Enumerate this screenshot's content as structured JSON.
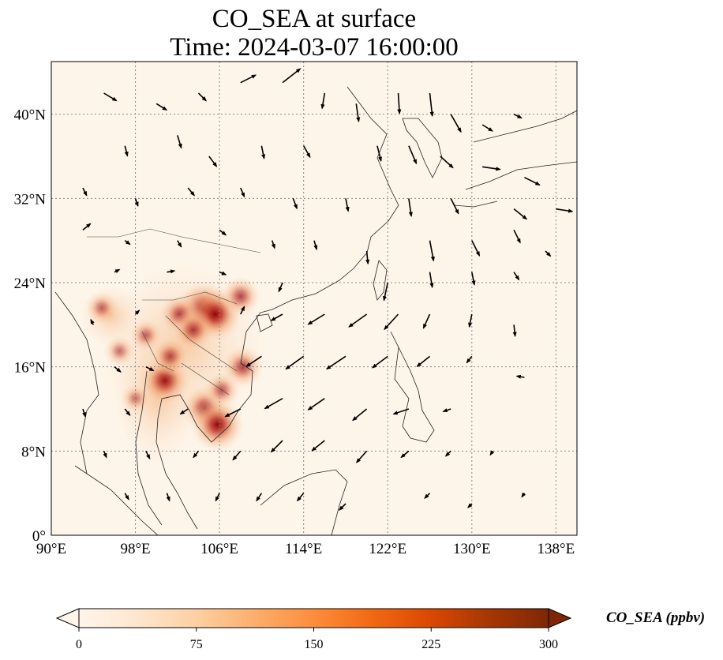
{
  "title": {
    "line1": "CO_SEA at surface",
    "line2": "Time: 2024-03-07 16:00:00"
  },
  "map": {
    "lon_range": [
      90,
      140
    ],
    "lat_range": [
      0,
      45
    ],
    "lon_ticks": [
      "90°E",
      "98°E",
      "106°E",
      "114°E",
      "122°E",
      "130°E",
      "138°E"
    ],
    "lat_ticks": [
      "0°",
      "8°N",
      "16°N",
      "24°N",
      "32°N",
      "40°N"
    ],
    "gridlines": true
  },
  "hotspots": [
    {
      "lon": 104.5,
      "lat": 21.5,
      "intensity": 1.0
    },
    {
      "lon": 105.6,
      "lat": 21.0,
      "intensity": 0.95
    },
    {
      "lon": 102.2,
      "lat": 21.0,
      "intensity": 0.55
    },
    {
      "lon": 103.5,
      "lat": 19.5,
      "intensity": 0.6
    },
    {
      "lon": 100.8,
      "lat": 14.7,
      "intensity": 0.85
    },
    {
      "lon": 104.6,
      "lat": 12.1,
      "intensity": 0.7
    },
    {
      "lon": 105.8,
      "lat": 10.5,
      "intensity": 0.95
    },
    {
      "lon": 108.2,
      "lat": 16.0,
      "intensity": 0.6
    },
    {
      "lon": 106.2,
      "lat": 13.8,
      "intensity": 0.45
    },
    {
      "lon": 99.0,
      "lat": 19.0,
      "intensity": 0.35
    },
    {
      "lon": 94.8,
      "lat": 21.6,
      "intensity": 0.35
    },
    {
      "lon": 96.5,
      "lat": 17.5,
      "intensity": 0.3
    },
    {
      "lon": 98.0,
      "lat": 13.0,
      "intensity": 0.25
    },
    {
      "lon": 108.0,
      "lat": 22.7,
      "intensity": 0.55
    },
    {
      "lon": 101.3,
      "lat": 17.0,
      "intensity": 0.5
    }
  ],
  "wind_vectors": [
    {
      "lon": 95,
      "lat": 42,
      "u": 1,
      "v": -0.6
    },
    {
      "lon": 100,
      "lat": 41,
      "u": 0.8,
      "v": -0.5
    },
    {
      "lon": 104,
      "lat": 42,
      "u": 0.6,
      "v": -0.6
    },
    {
      "lon": 108,
      "lat": 43,
      "u": 1.2,
      "v": 0.6
    },
    {
      "lon": 112,
      "lat": 43,
      "u": 1.4,
      "v": 1.1
    },
    {
      "lon": 116,
      "lat": 42,
      "u": -0.2,
      "v": -1.2
    },
    {
      "lon": 119,
      "lat": 41,
      "u": 0.2,
      "v": -1.4
    },
    {
      "lon": 123,
      "lat": 42,
      "u": 0.1,
      "v": -1.6
    },
    {
      "lon": 126,
      "lat": 42,
      "u": 0.2,
      "v": -1.8
    },
    {
      "lon": 128,
      "lat": 40,
      "u": 0.8,
      "v": -1.4
    },
    {
      "lon": 131,
      "lat": 39,
      "u": 0.8,
      "v": -0.5
    },
    {
      "lon": 134,
      "lat": 40,
      "u": 0.6,
      "v": -0.3
    },
    {
      "lon": 97,
      "lat": 37,
      "u": 0.2,
      "v": -0.8
    },
    {
      "lon": 102,
      "lat": 38,
      "u": 0.3,
      "v": -1.0
    },
    {
      "lon": 105,
      "lat": 36,
      "u": 0.6,
      "v": -0.8
    },
    {
      "lon": 110,
      "lat": 37,
      "u": 0.2,
      "v": -1.0
    },
    {
      "lon": 114,
      "lat": 37,
      "u": 0.5,
      "v": -0.9
    },
    {
      "lon": 121,
      "lat": 37,
      "u": 0.3,
      "v": -1.2
    },
    {
      "lon": 124,
      "lat": 37,
      "u": 0.6,
      "v": -1.4
    },
    {
      "lon": 127,
      "lat": 36,
      "u": 1.0,
      "v": -0.9
    },
    {
      "lon": 131,
      "lat": 35,
      "u": 1.4,
      "v": -0.2
    },
    {
      "lon": 135,
      "lat": 34,
      "u": 1.2,
      "v": -0.6
    },
    {
      "lon": 93,
      "lat": 33,
      "u": 0.3,
      "v": -0.6
    },
    {
      "lon": 98,
      "lat": 32,
      "u": 0.2,
      "v": -0.6
    },
    {
      "lon": 103,
      "lat": 33,
      "u": 0.5,
      "v": -0.6
    },
    {
      "lon": 108,
      "lat": 33,
      "u": 0.3,
      "v": -0.7
    },
    {
      "lon": 113,
      "lat": 32,
      "u": 0.3,
      "v": -0.8
    },
    {
      "lon": 118,
      "lat": 32,
      "u": 0.2,
      "v": -1.0
    },
    {
      "lon": 124,
      "lat": 32,
      "u": 0.2,
      "v": -1.4
    },
    {
      "lon": 128,
      "lat": 32,
      "u": 0.6,
      "v": -1.2
    },
    {
      "lon": 134,
      "lat": 31,
      "u": 1.0,
      "v": -0.8
    },
    {
      "lon": 138,
      "lat": 31,
      "u": 1.3,
      "v": -0.2
    },
    {
      "lon": 93,
      "lat": 29,
      "u": 0.6,
      "v": 0.5
    },
    {
      "lon": 97,
      "lat": 28,
      "u": 0.4,
      "v": -0.3
    },
    {
      "lon": 102,
      "lat": 28,
      "u": 0.3,
      "v": -0.5
    },
    {
      "lon": 106,
      "lat": 29,
      "u": 0.5,
      "v": -0.4
    },
    {
      "lon": 111,
      "lat": 28,
      "u": 0.2,
      "v": -0.6
    },
    {
      "lon": 115,
      "lat": 28,
      "u": 0.2,
      "v": -0.7
    },
    {
      "lon": 120,
      "lat": 27,
      "u": 0.1,
      "v": -1.0
    },
    {
      "lon": 126,
      "lat": 28,
      "u": 0.3,
      "v": -1.6
    },
    {
      "lon": 130,
      "lat": 28,
      "u": 0.6,
      "v": -1.2
    },
    {
      "lon": 134,
      "lat": 29,
      "u": 0.5,
      "v": -1.0
    },
    {
      "lon": 137,
      "lat": 27,
      "u": 0.4,
      "v": -0.4
    },
    {
      "lon": 96,
      "lat": 25,
      "u": 0.4,
      "v": 0.2
    },
    {
      "lon": 101,
      "lat": 25,
      "u": 0.6,
      "v": 0.1
    },
    {
      "lon": 106,
      "lat": 25,
      "u": 0.5,
      "v": -0.2
    },
    {
      "lon": 112,
      "lat": 24,
      "u": -0.3,
      "v": -0.7
    },
    {
      "lon": 122,
      "lat": 24,
      "u": -0.3,
      "v": -1.4
    },
    {
      "lon": 126,
      "lat": 25,
      "u": 0.2,
      "v": -1.2
    },
    {
      "lon": 130,
      "lat": 25,
      "u": 0.2,
      "v": -1.0
    },
    {
      "lon": 134,
      "lat": 25,
      "u": 0.4,
      "v": -0.6
    },
    {
      "lon": 94,
      "lat": 20,
      "u": -0.2,
      "v": 0.4
    },
    {
      "lon": 98,
      "lat": 21,
      "u": 0.3,
      "v": 0.3
    },
    {
      "lon": 108,
      "lat": 21,
      "u": 0.3,
      "v": 0.6
    },
    {
      "lon": 112,
      "lat": 21,
      "u": -0.9,
      "v": -0.5
    },
    {
      "lon": 116,
      "lat": 21,
      "u": -1.3,
      "v": -0.8
    },
    {
      "lon": 120,
      "lat": 21,
      "u": -1.4,
      "v": -1.0
    },
    {
      "lon": 123,
      "lat": 21,
      "u": -1.1,
      "v": -1.2
    },
    {
      "lon": 126,
      "lat": 21,
      "u": -0.5,
      "v": -1.1
    },
    {
      "lon": 130,
      "lat": 21,
      "u": -0.2,
      "v": -1.0
    },
    {
      "lon": 134,
      "lat": 20,
      "u": 0.1,
      "v": -0.9
    },
    {
      "lon": 96,
      "lat": 16,
      "u": 0.5,
      "v": -0.4
    },
    {
      "lon": 99,
      "lat": 16,
      "u": 0.6,
      "v": -0.3
    },
    {
      "lon": 110,
      "lat": 17,
      "u": -1.2,
      "v": -0.8
    },
    {
      "lon": 114,
      "lat": 17,
      "u": -1.4,
      "v": -1.0
    },
    {
      "lon": 118,
      "lat": 17,
      "u": -1.5,
      "v": -1.0
    },
    {
      "lon": 122,
      "lat": 17,
      "u": -1.2,
      "v": -0.9
    },
    {
      "lon": 126,
      "lat": 17,
      "u": -1.0,
      "v": -0.8
    },
    {
      "lon": 130,
      "lat": 17,
      "u": -0.4,
      "v": -0.5
    },
    {
      "lon": 135,
      "lat": 15,
      "u": -0.6,
      "v": 0.1
    },
    {
      "lon": 93,
      "lat": 12,
      "u": 0.2,
      "v": -0.6
    },
    {
      "lon": 97,
      "lat": 12,
      "u": 0.4,
      "v": -0.5
    },
    {
      "lon": 103,
      "lat": 12,
      "u": -0.6,
      "v": -0.4
    },
    {
      "lon": 108,
      "lat": 12,
      "u": -1.2,
      "v": -0.6
    },
    {
      "lon": 112,
      "lat": 13,
      "u": -1.4,
      "v": -0.8
    },
    {
      "lon": 116,
      "lat": 13,
      "u": -1.3,
      "v": -0.9
    },
    {
      "lon": 120,
      "lat": 12,
      "u": -1.1,
      "v": -0.9
    },
    {
      "lon": 124,
      "lat": 12,
      "u": -1.2,
      "v": -0.4
    },
    {
      "lon": 128,
      "lat": 12,
      "u": -0.6,
      "v": -0.2
    },
    {
      "lon": 95,
      "lat": 8,
      "u": 0.2,
      "v": -0.5
    },
    {
      "lon": 99,
      "lat": 8,
      "u": 0.3,
      "v": -0.6
    },
    {
      "lon": 104,
      "lat": 8,
      "u": -0.4,
      "v": -0.5
    },
    {
      "lon": 108,
      "lat": 8,
      "u": -0.6,
      "v": -0.7
    },
    {
      "lon": 112,
      "lat": 9,
      "u": -0.9,
      "v": -0.9
    },
    {
      "lon": 116,
      "lat": 9,
      "u": -1.0,
      "v": -0.8
    },
    {
      "lon": 120,
      "lat": 8,
      "u": -0.8,
      "v": -0.9
    },
    {
      "lon": 124,
      "lat": 8,
      "u": -0.6,
      "v": -0.5
    },
    {
      "lon": 128,
      "lat": 8,
      "u": -0.4,
      "v": -0.4
    },
    {
      "lon": 132,
      "lat": 8,
      "u": -0.2,
      "v": -0.3
    },
    {
      "lon": 97,
      "lat": 4,
      "u": 0.3,
      "v": -0.5
    },
    {
      "lon": 101,
      "lat": 4,
      "u": 0.2,
      "v": -0.6
    },
    {
      "lon": 106,
      "lat": 4,
      "u": -0.3,
      "v": -0.6
    },
    {
      "lon": 110,
      "lat": 4,
      "u": -0.4,
      "v": -0.6
    },
    {
      "lon": 114,
      "lat": 4,
      "u": -0.5,
      "v": -0.6
    },
    {
      "lon": 118,
      "lat": 3,
      "u": -0.5,
      "v": -0.5
    },
    {
      "lon": 126,
      "lat": 4,
      "u": -0.4,
      "v": -0.4
    },
    {
      "lon": 130,
      "lat": 3,
      "u": -0.3,
      "v": -0.3
    },
    {
      "lon": 135,
      "lat": 4,
      "u": -0.2,
      "v": -0.3
    }
  ],
  "colorbar": {
    "ticks": [
      "0",
      "75",
      "150",
      "225",
      "300"
    ],
    "vmin": 0,
    "vmax": 300,
    "label": "CO_SEA (ppbv)",
    "colors": [
      "#fff5eb",
      "#fee6ce",
      "#fdd0a2",
      "#fdae6b",
      "#fd8d3c",
      "#f16913",
      "#d94801",
      "#a63603",
      "#7f2704"
    ]
  }
}
